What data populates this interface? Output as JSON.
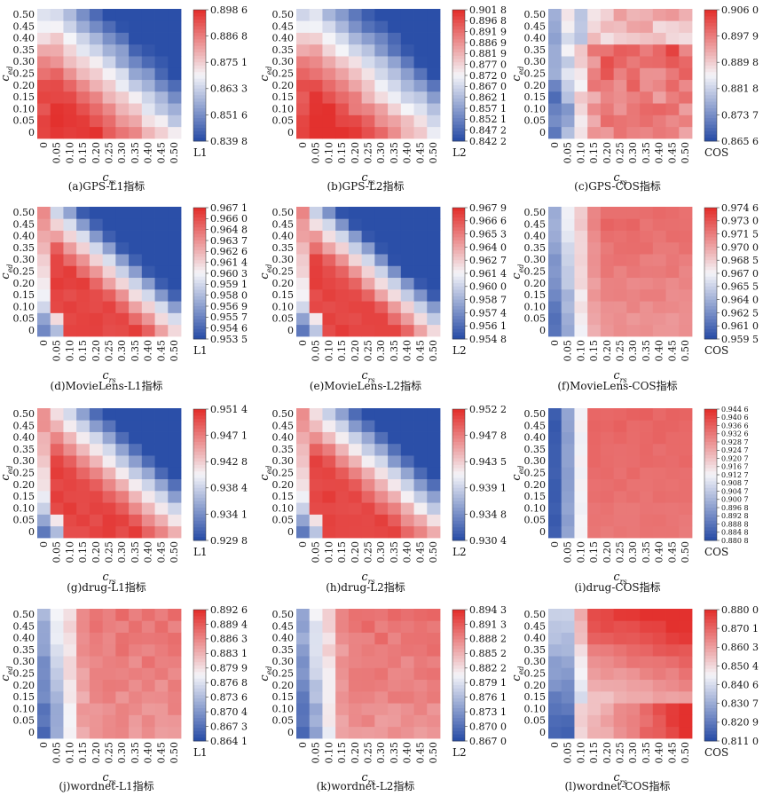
{
  "figure": {
    "x_axis_label": {
      "main": "c",
      "sub": "rs"
    },
    "y_axis_label": {
      "main": "c",
      "sub": "ed"
    },
    "tick_labels": [
      "0",
      "0.05",
      "0.10",
      "0.15",
      "0.20",
      "0.25",
      "0.30",
      "0.35",
      "0.40",
      "0.45",
      "0.50"
    ],
    "colors": {
      "low": "#2b4fa8",
      "mid": "#f4f4f8",
      "high": "#e3312e"
    }
  },
  "chart_data": [
    {
      "type": "heatmap",
      "id": "a",
      "caption": "(a)GPS-L1指标",
      "metric_label": "L1",
      "colorbar_ticks": [
        "0.898 6",
        "0.886 8",
        "0.875 1",
        "0.863 3",
        "0.851 6",
        "0.839 8"
      ],
      "range": [
        0.8398,
        0.8986
      ],
      "pattern": "diag",
      "alpha": 1.15,
      "noise": 0.08,
      "seed": 11
    },
    {
      "type": "heatmap",
      "id": "b",
      "caption": "(b)GPS-L2指标",
      "metric_label": "L2",
      "colorbar_ticks": [
        "0.901 8",
        "0.896 8",
        "0.891 9",
        "0.886 9",
        "0.881 9",
        "0.877 0",
        "0.872 0",
        "0.867 0",
        "0.862 1",
        "0.857 1",
        "0.852 1",
        "0.847 2",
        "0.842 2"
      ],
      "range": [
        0.8422,
        0.9018
      ],
      "pattern": "diag",
      "alpha": 1.1,
      "noise": 0.08,
      "seed": 23
    },
    {
      "type": "heatmap",
      "id": "c",
      "caption": "(c)GPS-COS指标",
      "metric_label": "COS",
      "colorbar_ticks": [
        "0.906 0",
        "0.897 9",
        "0.889 8",
        "0.881 8",
        "0.873 7",
        "0.865 6"
      ],
      "range": [
        0.8656,
        0.906
      ],
      "pattern": "cos",
      "alpha": 0.85,
      "noise": 0.18,
      "seed": 37
    },
    {
      "type": "heatmap",
      "id": "d",
      "caption": "(d)MovieLens-L1指标",
      "metric_label": "L1",
      "colorbar_ticks": [
        "0.967 1",
        "0.966 0",
        "0.964 8",
        "0.963 7",
        "0.962 6",
        "0.961 4",
        "0.960 3",
        "0.959 1",
        "0.958 0",
        "0.956 9",
        "0.955 7",
        "0.954 6",
        "0.953 5"
      ],
      "range": [
        0.9535,
        0.9671
      ],
      "pattern": "diagCorner",
      "alpha": 1.55,
      "noise": 0.05,
      "seed": 41
    },
    {
      "type": "heatmap",
      "id": "e",
      "caption": "(e)MovieLens-L2指标",
      "metric_label": "L2",
      "colorbar_ticks": [
        "0.967 9",
        "0.966 6",
        "0.965 3",
        "0.964 0",
        "0.962 7",
        "0.961 4",
        "0.960 0",
        "0.958 7",
        "0.957 4",
        "0.956 1",
        "0.954 8"
      ],
      "range": [
        0.9548,
        0.9679
      ],
      "pattern": "diagCorner",
      "alpha": 1.6,
      "noise": 0.05,
      "seed": 53
    },
    {
      "type": "heatmap",
      "id": "f",
      "caption": "(f)MovieLens-COS指标",
      "metric_label": "COS",
      "colorbar_ticks": [
        "0.974 6",
        "0.973 0",
        "0.971 5",
        "0.970 0",
        "0.968 5",
        "0.967 0",
        "0.965 5",
        "0.964 0",
        "0.962 5",
        "0.961 0",
        "0.959 5"
      ],
      "range": [
        0.9595,
        0.9746
      ],
      "pattern": "cos",
      "alpha": 0.55,
      "noise": 0.05,
      "seed": 67
    },
    {
      "type": "heatmap",
      "id": "g",
      "caption": "(g)drug-L1指标",
      "metric_label": "L1",
      "colorbar_ticks": [
        "0.951 4",
        "0.947 1",
        "0.942 8",
        "0.938 4",
        "0.934 1",
        "0.929 8"
      ],
      "range": [
        0.9298,
        0.9514
      ],
      "pattern": "diagCorner",
      "alpha": 1.2,
      "noise": 0.05,
      "seed": 71
    },
    {
      "type": "heatmap",
      "id": "h",
      "caption": "(h)drug-L2指标",
      "metric_label": "L2",
      "colorbar_ticks": [
        "0.952 2",
        "0.947 8",
        "0.943 5",
        "0.939 1",
        "0.934 8",
        "0.930 4"
      ],
      "range": [
        0.9304,
        0.9522
      ],
      "pattern": "diagCorner",
      "alpha": 1.2,
      "noise": 0.05,
      "seed": 83
    },
    {
      "type": "heatmap",
      "id": "i",
      "caption": "(i)drug-COS指标",
      "metric_label": "COS",
      "colorbar_ticks": [
        "0.944 6",
        "0.940 6",
        "0.936 6",
        "0.932 6",
        "0.928 7",
        "0.924 7",
        "0.920 7",
        "0.916 7",
        "0.912 7",
        "0.908 7",
        "0.904 7",
        "0.900 7",
        "0.896 8",
        "0.892 8",
        "0.888 8",
        "0.884 8",
        "0.880 8"
      ],
      "range": [
        0.8808,
        0.9446
      ],
      "pattern": "cosCol",
      "alpha": 0.7,
      "noise": 0.03,
      "seed": 97
    },
    {
      "type": "heatmap",
      "id": "j",
      "caption": "(j)wordnet-L1指标",
      "metric_label": "L1",
      "colorbar_ticks": [
        "0.892 6",
        "0.889 4",
        "0.886 3",
        "0.883 1",
        "0.879 9",
        "0.876 8",
        "0.873 6",
        "0.870 4",
        "0.867 3",
        "0.864 1"
      ],
      "range": [
        0.8641,
        0.8926
      ],
      "pattern": "cos",
      "alpha": 0.4,
      "noise": 0.08,
      "seed": 101
    },
    {
      "type": "heatmap",
      "id": "k",
      "caption": "(k)wordnet-L2指标",
      "metric_label": "L2",
      "colorbar_ticks": [
        "0.894 3",
        "0.891 3",
        "0.888 2",
        "0.885 2",
        "0.882 2",
        "0.879 1",
        "0.876 1",
        "0.873 1",
        "0.870 0",
        "0.867 0"
      ],
      "range": [
        0.867,
        0.8943
      ],
      "pattern": "cos",
      "alpha": 0.45,
      "noise": 0.08,
      "seed": 113
    },
    {
      "type": "heatmap",
      "id": "l",
      "caption": "(l)wordnet-COS指标",
      "metric_label": "COS",
      "colorbar_ticks": [
        "0.880 0",
        "0.870 1",
        "0.860 3",
        "0.850 4",
        "0.840 6",
        "0.830 7",
        "0.820 9",
        "0.811 0"
      ],
      "range": [
        0.811,
        0.88
      ],
      "pattern": "wordCos",
      "alpha": 0.4,
      "noise": 0.05,
      "seed": 127
    }
  ]
}
